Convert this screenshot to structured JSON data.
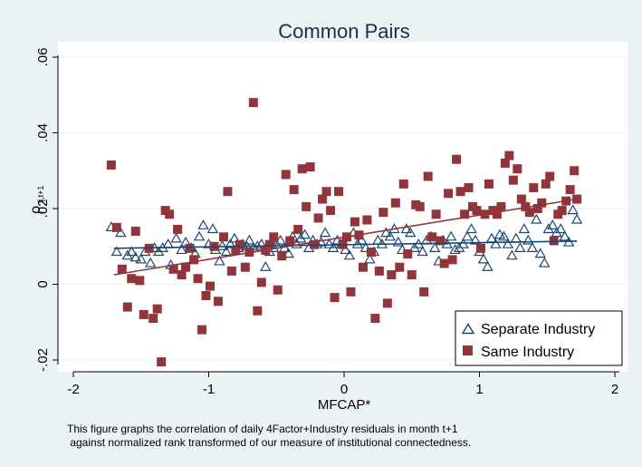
{
  "chart_data": {
    "type": "scatter",
    "title": "Common Pairs",
    "xlabel": "MFCAP*",
    "ylabel_main": "ρ",
    "ylabel_sub": "ij,t+1",
    "xlim": [
      -2,
      2
    ],
    "ylim": [
      -0.02,
      0.06
    ],
    "xticks": [
      -2,
      -1,
      0,
      1,
      2
    ],
    "xtick_labels": [
      "-2",
      "-1",
      "0",
      "1",
      "2"
    ],
    "yticks": [
      -0.02,
      0,
      0.02,
      0.04,
      0.06
    ],
    "ytick_labels": [
      "-.02",
      "0",
      ".02",
      ".04",
      ".06"
    ],
    "grid": true,
    "legend_position": "bottom-right",
    "series": [
      {
        "name": "Separate Industry",
        "marker": "triangle",
        "color": "#1a476f",
        "fit": [
          [
            -1.7,
            0.0095
          ],
          [
            1.72,
            0.0114
          ]
        ],
        "points": [
          [
            -1.72,
            0.015
          ],
          [
            -1.68,
            0.0085
          ],
          [
            -1.65,
            0.0135
          ],
          [
            -1.6,
            0.0075
          ],
          [
            -1.57,
            0.0085
          ],
          [
            -1.54,
            0.007
          ],
          [
            -1.5,
            0.0065
          ],
          [
            -1.47,
            0.0085
          ],
          [
            -1.43,
            0.0055
          ],
          [
            -1.4,
            0.0095
          ],
          [
            -1.37,
            0.0085
          ],
          [
            -1.34,
            0.0095
          ],
          [
            -1.3,
            0.0105
          ],
          [
            -1.28,
            0.005
          ],
          [
            -1.24,
            0.012
          ],
          [
            -1.2,
            0.009
          ],
          [
            -1.17,
            0.011
          ],
          [
            -1.13,
            0.0095
          ],
          [
            -1.1,
            0.008
          ],
          [
            -1.07,
            0.0125
          ],
          [
            -1.04,
            0.0155
          ],
          [
            -1.0,
            0.0105
          ],
          [
            -0.97,
            0.0145
          ],
          [
            -0.95,
            0.009
          ],
          [
            -0.92,
            0.006
          ],
          [
            -0.9,
            0.01
          ],
          [
            -0.87,
            0.0085
          ],
          [
            -0.84,
            0.0105
          ],
          [
            -0.81,
            0.012
          ],
          [
            -0.78,
            0.0095
          ],
          [
            -0.75,
            0.0105
          ],
          [
            -0.72,
            0.01
          ],
          [
            -0.7,
            0.0115
          ],
          [
            -0.67,
            0.0095
          ],
          [
            -0.64,
            0.01
          ],
          [
            -0.61,
            0.0105
          ],
          [
            -0.58,
            0.0045
          ],
          [
            -0.55,
            0.0085
          ],
          [
            -0.52,
            0.0095
          ],
          [
            -0.5,
            0.0105
          ],
          [
            -0.47,
            0.0115
          ],
          [
            -0.44,
            0.0095
          ],
          [
            -0.41,
            0.008
          ],
          [
            -0.38,
            0.0125
          ],
          [
            -0.35,
            0.0105
          ],
          [
            -0.32,
            0.012
          ],
          [
            -0.29,
            0.013
          ],
          [
            -0.26,
            0.0095
          ],
          [
            -0.23,
            0.0115
          ],
          [
            -0.2,
            0.0105
          ],
          [
            -0.17,
            0.011
          ],
          [
            -0.14,
            0.0135
          ],
          [
            -0.11,
            0.0105
          ],
          [
            -0.08,
            0.0095
          ],
          [
            -0.05,
            0.0115
          ],
          [
            -0.02,
            0.0105
          ],
          [
            0.01,
            0.009
          ],
          [
            0.04,
            0.0075
          ],
          [
            0.07,
            0.0135
          ],
          [
            0.1,
            0.0105
          ],
          [
            0.13,
            0.0115
          ],
          [
            0.16,
            0.0095
          ],
          [
            0.19,
            0.0065
          ],
          [
            0.22,
            0.0085
          ],
          [
            0.25,
            0.0115
          ],
          [
            0.28,
            0.0105
          ],
          [
            0.31,
            0.0135
          ],
          [
            0.34,
            0.0125
          ],
          [
            0.37,
            0.0145
          ],
          [
            0.4,
            0.011
          ],
          [
            0.43,
            0.009
          ],
          [
            0.46,
            0.0145
          ],
          [
            0.49,
            0.0135
          ],
          [
            0.52,
            0.0095
          ],
          [
            0.55,
            0.0105
          ],
          [
            0.58,
            0.0085
          ],
          [
            0.61,
            0.0115
          ],
          [
            0.64,
            0.0125
          ],
          [
            0.67,
            0.0095
          ],
          [
            0.7,
            0.006
          ],
          [
            0.73,
            0.0115
          ],
          [
            0.76,
            0.0105
          ],
          [
            0.79,
            0.0125
          ],
          [
            0.82,
            0.009
          ],
          [
            0.85,
            0.0095
          ],
          [
            0.88,
            0.0105
          ],
          [
            0.91,
            0.0125
          ],
          [
            0.94,
            0.0145
          ],
          [
            0.97,
            0.0115
          ],
          [
            1.0,
            0.0085
          ],
          [
            1.03,
            0.0065
          ],
          [
            1.06,
            0.0045
          ],
          [
            1.09,
            0.012
          ],
          [
            1.12,
            0.0105
          ],
          [
            1.15,
            0.013
          ],
          [
            1.18,
            0.0125
          ],
          [
            1.21,
            0.0105
          ],
          [
            1.24,
            0.0075
          ],
          [
            1.27,
            0.012
          ],
          [
            1.3,
            0.0095
          ],
          [
            1.33,
            0.0145
          ],
          [
            1.36,
            0.0115
          ],
          [
            1.39,
            0.0095
          ],
          [
            1.42,
            0.017
          ],
          [
            1.45,
            0.008
          ],
          [
            1.48,
            0.0055
          ],
          [
            1.51,
            0.0145
          ],
          [
            1.54,
            0.0155
          ],
          [
            1.57,
            0.0135
          ],
          [
            1.6,
            0.0145
          ],
          [
            1.63,
            0.0125
          ],
          [
            1.66,
            0.011
          ],
          [
            1.69,
            0.0195
          ],
          [
            1.72,
            0.017
          ]
        ]
      },
      {
        "name": "Same Industry",
        "marker": "square",
        "color": "#90353b",
        "fit": [
          [
            -1.7,
            0.0025
          ],
          [
            1.72,
            0.0225
          ]
        ],
        "points": [
          [
            -1.72,
            0.0315
          ],
          [
            -1.68,
            0.015
          ],
          [
            -1.64,
            0.004
          ],
          [
            -1.6,
            -0.006
          ],
          [
            -1.57,
            0.0015
          ],
          [
            -1.54,
            0.014
          ],
          [
            -1.51,
            0.001
          ],
          [
            -1.48,
            -0.008
          ],
          [
            -1.44,
            0.0095
          ],
          [
            -1.41,
            -0.009
          ],
          [
            -1.38,
            -0.0065
          ],
          [
            -1.35,
            -0.0205
          ],
          [
            -1.32,
            0.0195
          ],
          [
            -1.29,
            0.0185
          ],
          [
            -1.26,
            0.004
          ],
          [
            -1.23,
            0.0145
          ],
          [
            -1.2,
            0.0025
          ],
          [
            -1.17,
            0.0045
          ],
          [
            -1.14,
            0.0095
          ],
          [
            -1.11,
            0.0065
          ],
          [
            -1.08,
            0.0015
          ],
          [
            -1.05,
            -0.012
          ],
          [
            -1.02,
            -0.003
          ],
          [
            -0.99,
            -0.0005
          ],
          [
            -0.96,
            0.01
          ],
          [
            -0.93,
            -0.0045
          ],
          [
            -0.89,
            0.0125
          ],
          [
            -0.86,
            0.0245
          ],
          [
            -0.83,
            0.0035
          ],
          [
            -0.8,
            0.009
          ],
          [
            -0.77,
            0.0105
          ],
          [
            -0.73,
            0.0045
          ],
          [
            -0.7,
            0.0085
          ],
          [
            -0.67,
            0.048
          ],
          [
            -0.64,
            -0.007
          ],
          [
            -0.61,
            0.0005
          ],
          [
            -0.58,
            0.009
          ],
          [
            -0.55,
            0.0105
          ],
          [
            -0.52,
            0.0125
          ],
          [
            -0.49,
            -0.0015
          ],
          [
            -0.46,
            0.0075
          ],
          [
            -0.43,
            0.029
          ],
          [
            -0.4,
            0.0115
          ],
          [
            -0.37,
            0.025
          ],
          [
            -0.34,
            0.0145
          ],
          [
            -0.31,
            0.0305
          ],
          [
            -0.28,
            0.0205
          ],
          [
            -0.25,
            0.031
          ],
          [
            -0.22,
            0.0105
          ],
          [
            -0.19,
            0.0175
          ],
          [
            -0.16,
            0.0225
          ],
          [
            -0.13,
            0.0245
          ],
          [
            -0.1,
            0.0195
          ],
          [
            -0.07,
            -0.0035
          ],
          [
            -0.04,
            0.0245
          ],
          [
            -0.01,
            0.0105
          ],
          [
            0.02,
            0.0125
          ],
          [
            0.05,
            -0.002
          ],
          [
            0.08,
            0.0165
          ],
          [
            0.11,
            0.013
          ],
          [
            0.14,
            0.0045
          ],
          [
            0.17,
            0.017
          ],
          [
            0.2,
            0.0085
          ],
          [
            0.23,
            -0.009
          ],
          [
            0.26,
            0.0035
          ],
          [
            0.29,
            0.019
          ],
          [
            0.32,
            -0.005
          ],
          [
            0.35,
            0.0025
          ],
          [
            0.38,
            0.0215
          ],
          [
            0.41,
            0.0045
          ],
          [
            0.44,
            0.0265
          ],
          [
            0.47,
            0.008
          ],
          [
            0.5,
            0.0025
          ],
          [
            0.53,
            0.021
          ],
          [
            0.56,
            0.0205
          ],
          [
            0.59,
            -0.002
          ],
          [
            0.62,
            0.0285
          ],
          [
            0.65,
            0.0125
          ],
          [
            0.68,
            0.0185
          ],
          [
            0.71,
            0.0115
          ],
          [
            0.74,
            0.0055
          ],
          [
            0.77,
            0.024
          ],
          [
            0.8,
            0.0065
          ],
          [
            0.83,
            0.033
          ],
          [
            0.86,
            0.0245
          ],
          [
            0.89,
            0.0185
          ],
          [
            0.92,
            0.0255
          ],
          [
            0.95,
            0.0205
          ],
          [
            0.98,
            0.0195
          ],
          [
            1.01,
            0.0095
          ],
          [
            1.04,
            0.0185
          ],
          [
            1.07,
            0.0265
          ],
          [
            1.1,
            0.0195
          ],
          [
            1.13,
            0.0185
          ],
          [
            1.16,
            0.0205
          ],
          [
            1.19,
            0.032
          ],
          [
            1.22,
            0.034
          ],
          [
            1.25,
            0.0275
          ],
          [
            1.28,
            0.0305
          ],
          [
            1.31,
            0.0225
          ],
          [
            1.34,
            0.0205
          ],
          [
            1.37,
            0.019
          ],
          [
            1.4,
            0.0255
          ],
          [
            1.43,
            0.02
          ],
          [
            1.46,
            0.0215
          ],
          [
            1.49,
            0.0265
          ],
          [
            1.52,
            0.0285
          ],
          [
            1.55,
            0.0115
          ],
          [
            1.58,
            0.0185
          ],
          [
            1.61,
            0.0195
          ],
          [
            1.64,
            0.022
          ],
          [
            1.67,
            0.025
          ],
          [
            1.7,
            0.03
          ],
          [
            1.72,
            0.0225
          ]
        ]
      }
    ]
  },
  "caption": {
    "line1": "This figure graphs the correlation of daily 4Factor+Industry residuals in month t+1",
    "line2": " against normalized rank transformed of our measure of institutional connectedness."
  }
}
